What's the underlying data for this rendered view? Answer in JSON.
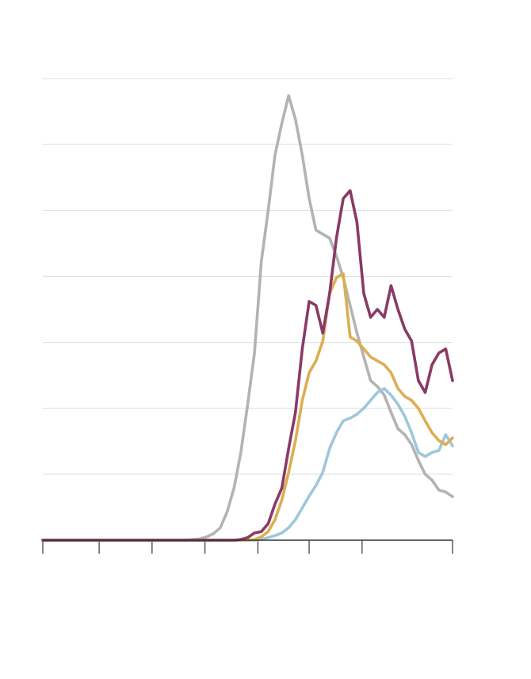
{
  "chart_data": {
    "type": "line",
    "x": [
      0,
      40,
      84,
      88,
      92,
      96,
      100,
      104,
      108,
      112,
      116,
      120,
      124,
      128,
      132,
      136,
      140,
      144,
      148,
      152,
      156,
      160,
      164,
      168,
      172,
      176,
      180,
      184,
      188,
      192,
      196,
      200,
      204,
      208,
      212,
      216,
      220,
      224,
      228,
      232,
      236,
      240
    ],
    "series": [
      {
        "color": "#b3b3b3",
        "values": [
          0,
          0,
          0,
          0.01,
          0.02,
          0.05,
          0.1,
          0.19,
          0.43,
          0.79,
          1.33,
          2.06,
          2.84,
          4.22,
          5.0,
          5.84,
          6.32,
          6.74,
          6.38,
          5.84,
          5.18,
          4.7,
          4.64,
          4.58,
          4.31,
          3.98,
          3.56,
          3.14,
          2.78,
          2.42,
          2.33,
          2.2,
          1.94,
          1.69,
          1.6,
          1.45,
          1.21,
          1.0,
          0.91,
          0.76,
          0.73,
          0.66
        ]
      },
      {
        "color": "#9fc7dc",
        "values": [
          0,
          0,
          0,
          0,
          0,
          0,
          0,
          0,
          0,
          0,
          0,
          0,
          0,
          0.01,
          0.04,
          0.07,
          0.11,
          0.19,
          0.31,
          0.49,
          0.67,
          0.83,
          1.03,
          1.39,
          1.63,
          1.81,
          1.85,
          1.91,
          2.0,
          2.12,
          2.24,
          2.3,
          2.2,
          2.06,
          1.88,
          1.63,
          1.33,
          1.27,
          1.33,
          1.36,
          1.6,
          1.43
        ]
      },
      {
        "color": "#dcae52",
        "values": [
          0,
          0,
          0,
          0,
          0,
          0,
          0,
          0,
          0,
          0,
          0,
          0,
          0.01,
          0.05,
          0.13,
          0.31,
          0.61,
          1.03,
          1.51,
          2.12,
          2.54,
          2.72,
          3.02,
          3.74,
          3.98,
          4.04,
          3.08,
          3.02,
          2.9,
          2.78,
          2.72,
          2.66,
          2.54,
          2.3,
          2.18,
          2.12,
          2.0,
          1.81,
          1.63,
          1.51,
          1.45,
          1.55
        ]
      },
      {
        "color": "#8a3a64",
        "values": [
          0,
          0,
          0,
          0,
          0,
          0,
          0,
          0,
          0,
          0,
          0.01,
          0.04,
          0.11,
          0.13,
          0.25,
          0.55,
          0.79,
          1.39,
          1.94,
          2.9,
          3.62,
          3.56,
          3.14,
          3.74,
          4.58,
          5.18,
          5.3,
          4.82,
          3.74,
          3.38,
          3.5,
          3.38,
          3.86,
          3.5,
          3.2,
          3.02,
          2.42,
          2.24,
          2.66,
          2.84,
          2.9,
          2.42
        ]
      }
    ],
    "xlim": [
      0,
      240
    ],
    "xticks": [
      0,
      33,
      64,
      95,
      126,
      156,
      187,
      240
    ],
    "ylim": [
      0,
      7
    ],
    "yticks": [
      0,
      1,
      2,
      3,
      4,
      5,
      6,
      7
    ],
    "grid": true
  }
}
